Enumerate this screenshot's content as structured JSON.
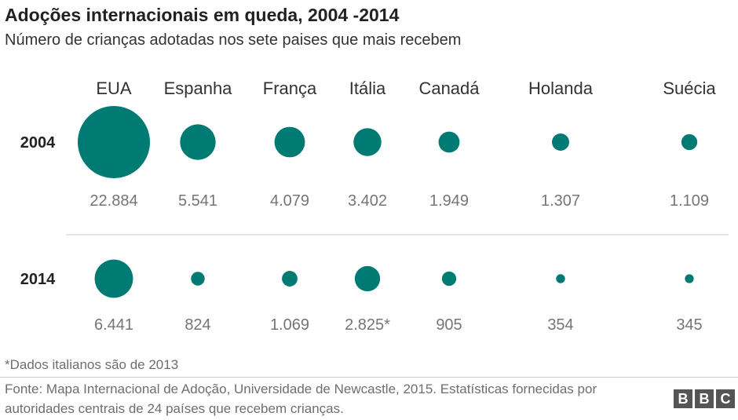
{
  "header": {
    "title": "Adoções internacionais em queda, 2004 -2014",
    "subtitle": "Número de crianças adotadas nos sete paises que mais recebem"
  },
  "chart_data": {
    "type": "bubble",
    "title": "Adoções internacionais em queda, 2004 -2014",
    "subtitle": "Número de crianças adotadas nos sete paises que mais recebem",
    "categories": [
      "EUA",
      "Espanha",
      "França",
      "Itália",
      "Canadá",
      "Holanda",
      "Suécia"
    ],
    "series": [
      {
        "name": "2004",
        "values": [
          22884,
          5541,
          4079,
          3402,
          1949,
          1307,
          1109
        ],
        "labels": [
          "22.884",
          "5.541",
          "4.079",
          "3.402",
          "1.949",
          "1.307",
          "1.109"
        ]
      },
      {
        "name": "2014",
        "values": [
          6441,
          824,
          1069,
          2825,
          905,
          354,
          345
        ],
        "labels": [
          "6.441",
          "824",
          "1.069",
          "2.825*",
          "905",
          "354",
          "345"
        ]
      }
    ],
    "color": "#007b74"
  },
  "footnote": "*Dados italianos são de 2013",
  "source": "Fonte: Mapa Internacional de Adoção, Universidade de Newcastle, 2015. Estatísticas fornecidas por autoridades centrais de 24 países que recebem crianças.",
  "logo": {
    "letters": [
      "B",
      "B",
      "C"
    ]
  }
}
